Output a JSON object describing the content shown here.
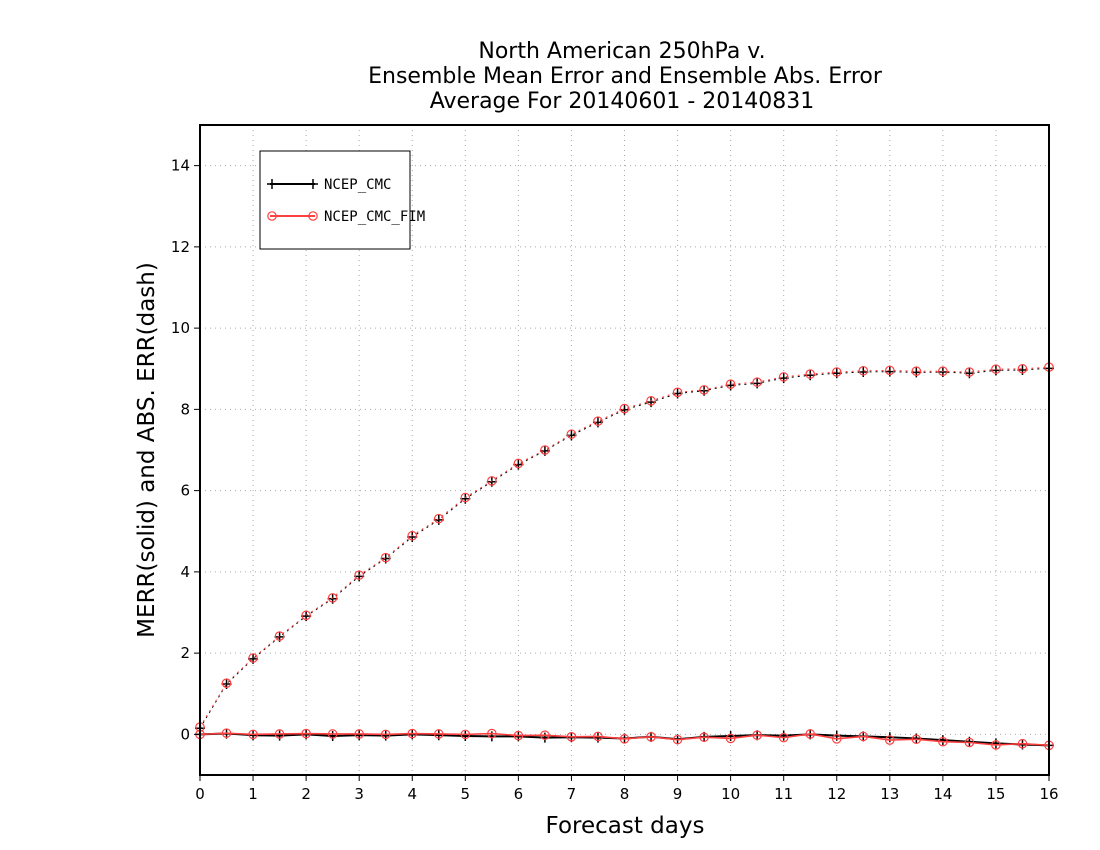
{
  "chart_data": {
    "type": "line",
    "title_lines": [
      "North American 250hPa v.",
      "Ensemble Mean Error and Ensemble Abs. Error",
      "Average For 20140601 - 20140831"
    ],
    "xlabel": "Forecast days",
    "ylabel": "MERR(solid) and ABS. ERR(dash)",
    "xlim": [
      0,
      16
    ],
    "ylim": [
      -1,
      15
    ],
    "x_ticks": [
      0,
      1,
      2,
      3,
      4,
      5,
      6,
      7,
      8,
      9,
      10,
      11,
      12,
      13,
      14,
      15,
      16
    ],
    "y_ticks": [
      0,
      2,
      4,
      6,
      8,
      10,
      12,
      14
    ],
    "grid": true,
    "legend_position": "top-left",
    "x": [
      0,
      0.5,
      1,
      1.5,
      2,
      2.5,
      3,
      3.5,
      4,
      4.5,
      5,
      5.5,
      6,
      6.5,
      7,
      7.5,
      8,
      8.5,
      9,
      9.5,
      10,
      10.5,
      11,
      11.5,
      12,
      12.5,
      13,
      13.5,
      14,
      14.5,
      15,
      15.5,
      16
    ],
    "series": [
      {
        "name": "NCEP_CMC",
        "color": "#000000",
        "marker": "plus",
        "merr": [
          0,
          0.02,
          -0.02,
          -0.03,
          0,
          -0.04,
          -0.02,
          -0.03,
          0,
          -0.02,
          -0.04,
          -0.05,
          -0.05,
          -0.08,
          -0.07,
          -0.08,
          -0.1,
          -0.06,
          -0.12,
          -0.06,
          -0.04,
          -0.02,
          -0.03,
          0,
          -0.03,
          -0.05,
          -0.07,
          -0.1,
          -0.14,
          -0.18,
          -0.22,
          -0.25,
          -0.27
        ],
        "abs_err": [
          0.15,
          1.24,
          1.86,
          2.4,
          2.91,
          3.34,
          3.89,
          4.33,
          4.86,
          5.28,
          5.8,
          6.22,
          6.64,
          6.98,
          7.36,
          7.68,
          7.99,
          8.18,
          8.39,
          8.46,
          8.59,
          8.64,
          8.77,
          8.84,
          8.89,
          8.92,
          8.93,
          8.91,
          8.92,
          8.89,
          8.96,
          8.97,
          9.01
        ]
      },
      {
        "name": "NCEP_CMC_FIM",
        "color": "#ff4040",
        "marker": "circle",
        "merr": [
          0,
          0.03,
          0,
          0.01,
          0.02,
          0.01,
          0.01,
          0,
          0.02,
          0.01,
          0,
          0.02,
          -0.03,
          -0.02,
          -0.06,
          -0.05,
          -0.11,
          -0.06,
          -0.13,
          -0.07,
          -0.1,
          -0.02,
          -0.08,
          0.01,
          -0.11,
          -0.05,
          -0.14,
          -0.12,
          -0.18,
          -0.2,
          -0.26,
          -0.23,
          -0.27
        ],
        "abs_err": [
          0.18,
          1.26,
          1.88,
          2.42,
          2.93,
          3.36,
          3.92,
          4.35,
          4.89,
          5.31,
          5.83,
          6.24,
          6.67,
          7.0,
          7.39,
          7.71,
          8.02,
          8.21,
          8.42,
          8.48,
          8.62,
          8.67,
          8.8,
          8.87,
          8.92,
          8.95,
          8.96,
          8.94,
          8.94,
          8.92,
          8.99,
          9.0,
          9.04
        ]
      }
    ]
  }
}
